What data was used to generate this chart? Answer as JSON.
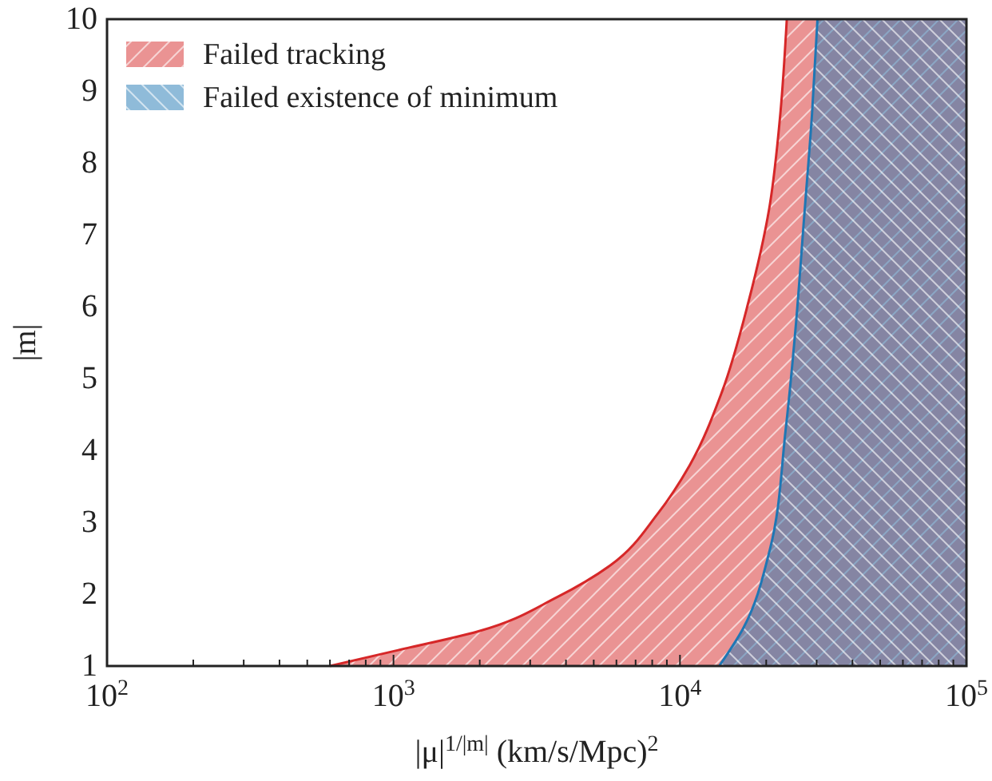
{
  "chart_data": {
    "type": "area",
    "xlabel": "|μ|$^{1/|m|}$ (km/s/Mpc)$^{2}$",
    "ylabel": "|m|",
    "log": "x",
    "legend": "top left",
    "xlim": [
      100,
      100000
    ],
    "ylim": [
      1,
      10
    ],
    "xticks": [
      {
        "value": 100,
        "label": "10$^{2}$"
      },
      {
        "value": 200,
        "label": null
      },
      {
        "value": 300,
        "label": null
      },
      {
        "value": 400,
        "label": null
      },
      {
        "value": 500,
        "label": null
      },
      {
        "value": 600,
        "label": null
      },
      {
        "value": 700,
        "label": null
      },
      {
        "value": 800,
        "label": null
      },
      {
        "value": 900,
        "label": null
      },
      {
        "value": 1000,
        "label": "10$^{3}$"
      },
      {
        "value": 2000,
        "label": null
      },
      {
        "value": 3000,
        "label": null
      },
      {
        "value": 4000,
        "label": null
      },
      {
        "value": 5000,
        "label": null
      },
      {
        "value": 6000,
        "label": null
      },
      {
        "value": 7000,
        "label": null
      },
      {
        "value": 8000,
        "label": null
      },
      {
        "value": 9000,
        "label": null
      },
      {
        "value": 10000,
        "label": "10$^{4}$"
      },
      {
        "value": 20000,
        "label": null
      },
      {
        "value": 30000,
        "label": null
      },
      {
        "value": 40000,
        "label": null
      },
      {
        "value": 50000,
        "label": null
      },
      {
        "value": 60000,
        "label": null
      },
      {
        "value": 70000,
        "label": null
      },
      {
        "value": 80000,
        "label": null
      },
      {
        "value": 90000,
        "label": null
      },
      {
        "value": 100000,
        "label": "10$^{5}$"
      }
    ],
    "yticks": [
      1,
      2,
      3,
      4,
      5,
      6,
      7,
      8,
      9,
      10
    ],
    "series": [
      {
        "name": "Failed tracking",
        "color": "#d62728",
        "x": [
          100000,
          600,
          1010,
          1970,
          3730,
          5710,
          8400,
          10800,
          14000,
          17300,
          20500,
          22400,
          23600,
          100000
        ],
        "values": [
          1,
          1,
          1.21,
          1.48,
          1.96,
          2.4,
          3.13,
          3.79,
          4.81,
          6.05,
          7.37,
          8.68,
          10,
          10
        ]
      },
      {
        "name": "Failed existence of minimum",
        "color": "#1f77b4",
        "x": [
          100000,
          13700,
          16600,
          20600,
          23400,
          25400,
          27100,
          28900,
          30200,
          100000
        ],
        "values": [
          1,
          1,
          1.52,
          2.62,
          4.3,
          5.76,
          7.22,
          8.68,
          10,
          10
        ]
      }
    ]
  }
}
